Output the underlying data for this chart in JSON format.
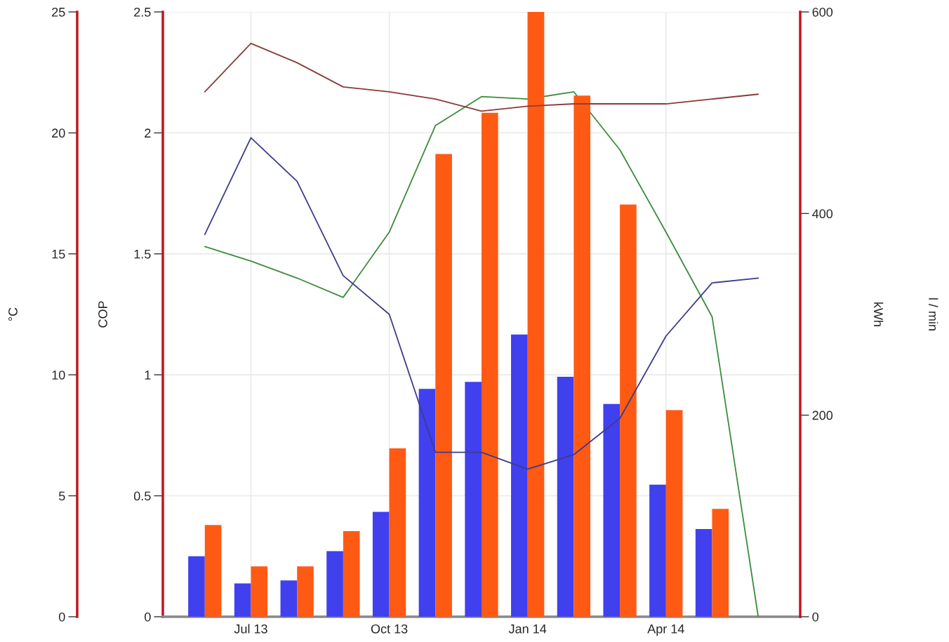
{
  "chart_data": {
    "type": "bar",
    "categories": [
      null,
      "Jul 13",
      null,
      null,
      "Oct 13",
      null,
      null,
      "Jan 14",
      null,
      null,
      "Apr 14",
      null,
      null
    ],
    "ylabel": "COP",
    "y2label": "kWh",
    "y3label": "°C",
    "annotations": [
      "l / min"
    ],
    "ylim": [
      0,
      2.5
    ],
    "yticks": [
      0,
      0.5,
      1,
      1.5,
      2,
      2.5
    ],
    "y2lim": [
      0,
      600
    ],
    "y2ticks": [
      0,
      200,
      400,
      600
    ],
    "y3lim": [
      0,
      25
    ],
    "y3ticks": [
      0,
      5,
      10,
      15,
      20,
      25
    ],
    "grid": true,
    "legend": false,
    "series": [
      {
        "axis": "y2",
        "color": "#4040ee",
        "values": [
          60,
          33,
          36,
          65,
          104,
          226,
          233,
          280,
          238,
          211,
          131,
          87,
          null
        ]
      },
      {
        "axis": "y2",
        "color": "#ff5a14",
        "values": [
          91,
          50,
          50,
          85,
          167,
          459,
          500,
          600,
          517,
          409,
          205,
          107,
          null
        ]
      },
      {
        "type": "line",
        "axis": "y3",
        "color": "#8b3a3a",
        "values": [
          21.7,
          23.7,
          22.9,
          21.9,
          21.7,
          21.4,
          20.9,
          21.1,
          21.2,
          21.2,
          21.2,
          21.4,
          21.6
        ]
      },
      {
        "type": "line",
        "axis": "y",
        "color": "#3c8c3c",
        "values": [
          1.53,
          1.47,
          1.4,
          1.32,
          1.59,
          2.03,
          2.15,
          2.14,
          2.17,
          1.93,
          1.59,
          1.24,
          0
        ]
      },
      {
        "type": "line",
        "axis": "y3",
        "color": "#3c3c8c",
        "values": [
          15.8,
          19.8,
          18.0,
          14.1,
          12.5,
          6.8,
          6.8,
          6.1,
          6.7,
          8.2,
          11.6,
          13.8,
          14.0
        ]
      }
    ]
  }
}
